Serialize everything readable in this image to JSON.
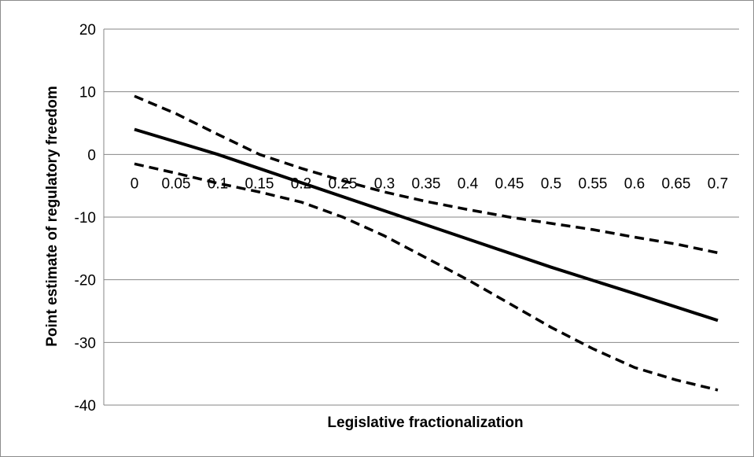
{
  "chart_data": {
    "type": "line",
    "xlabel": "Legislative fractionalization",
    "ylabel": "Point estimate of regulatory freedom",
    "xlim": [
      0,
      0.7
    ],
    "ylim": [
      -40,
      20
    ],
    "x_ticks": [
      "0",
      "0.05",
      "0.1",
      "0.15",
      "0.2",
      "0.25",
      "0.3",
      "0.35",
      "0.4",
      "0.45",
      "0.5",
      "0.55",
      "0.6",
      "0.65",
      "0.7"
    ],
    "y_ticks": [
      "20",
      "10",
      "0",
      "-10",
      "-20",
      "-30",
      "-40"
    ],
    "grid": "horizontal",
    "legend": "none",
    "series": [
      {
        "style": "solid",
        "x": [
          0,
          0.1,
          0.2,
          0.3,
          0.4,
          0.5,
          0.6,
          0.7
        ],
        "y": [
          4,
          0,
          -4.5,
          -9,
          -13.5,
          -18,
          -22.2,
          -26.5
        ]
      },
      {
        "style": "dashed",
        "x": [
          0,
          0.05,
          0.1,
          0.15,
          0.2,
          0.25,
          0.3,
          0.35,
          0.4,
          0.45,
          0.5,
          0.55,
          0.6,
          0.65,
          0.7
        ],
        "y": [
          9.3,
          6.5,
          3.2,
          0,
          -2.2,
          -4.2,
          -6,
          -7.5,
          -8.8,
          -10,
          -11,
          -12,
          -13.2,
          -14.3,
          -15.7
        ]
      },
      {
        "style": "dashed",
        "x": [
          0,
          0.05,
          0.1,
          0.15,
          0.2,
          0.25,
          0.3,
          0.35,
          0.4,
          0.45,
          0.5,
          0.55,
          0.6,
          0.65,
          0.7
        ],
        "y": [
          -1.5,
          -3,
          -4.6,
          -6,
          -7.6,
          -10,
          -13,
          -16.5,
          -20,
          -23.8,
          -27.6,
          -31,
          -34,
          -36,
          -37.6
        ]
      }
    ],
    "colors": {
      "line": "#000000",
      "grid": "#868686",
      "frame": "#8c8c8c"
    }
  }
}
